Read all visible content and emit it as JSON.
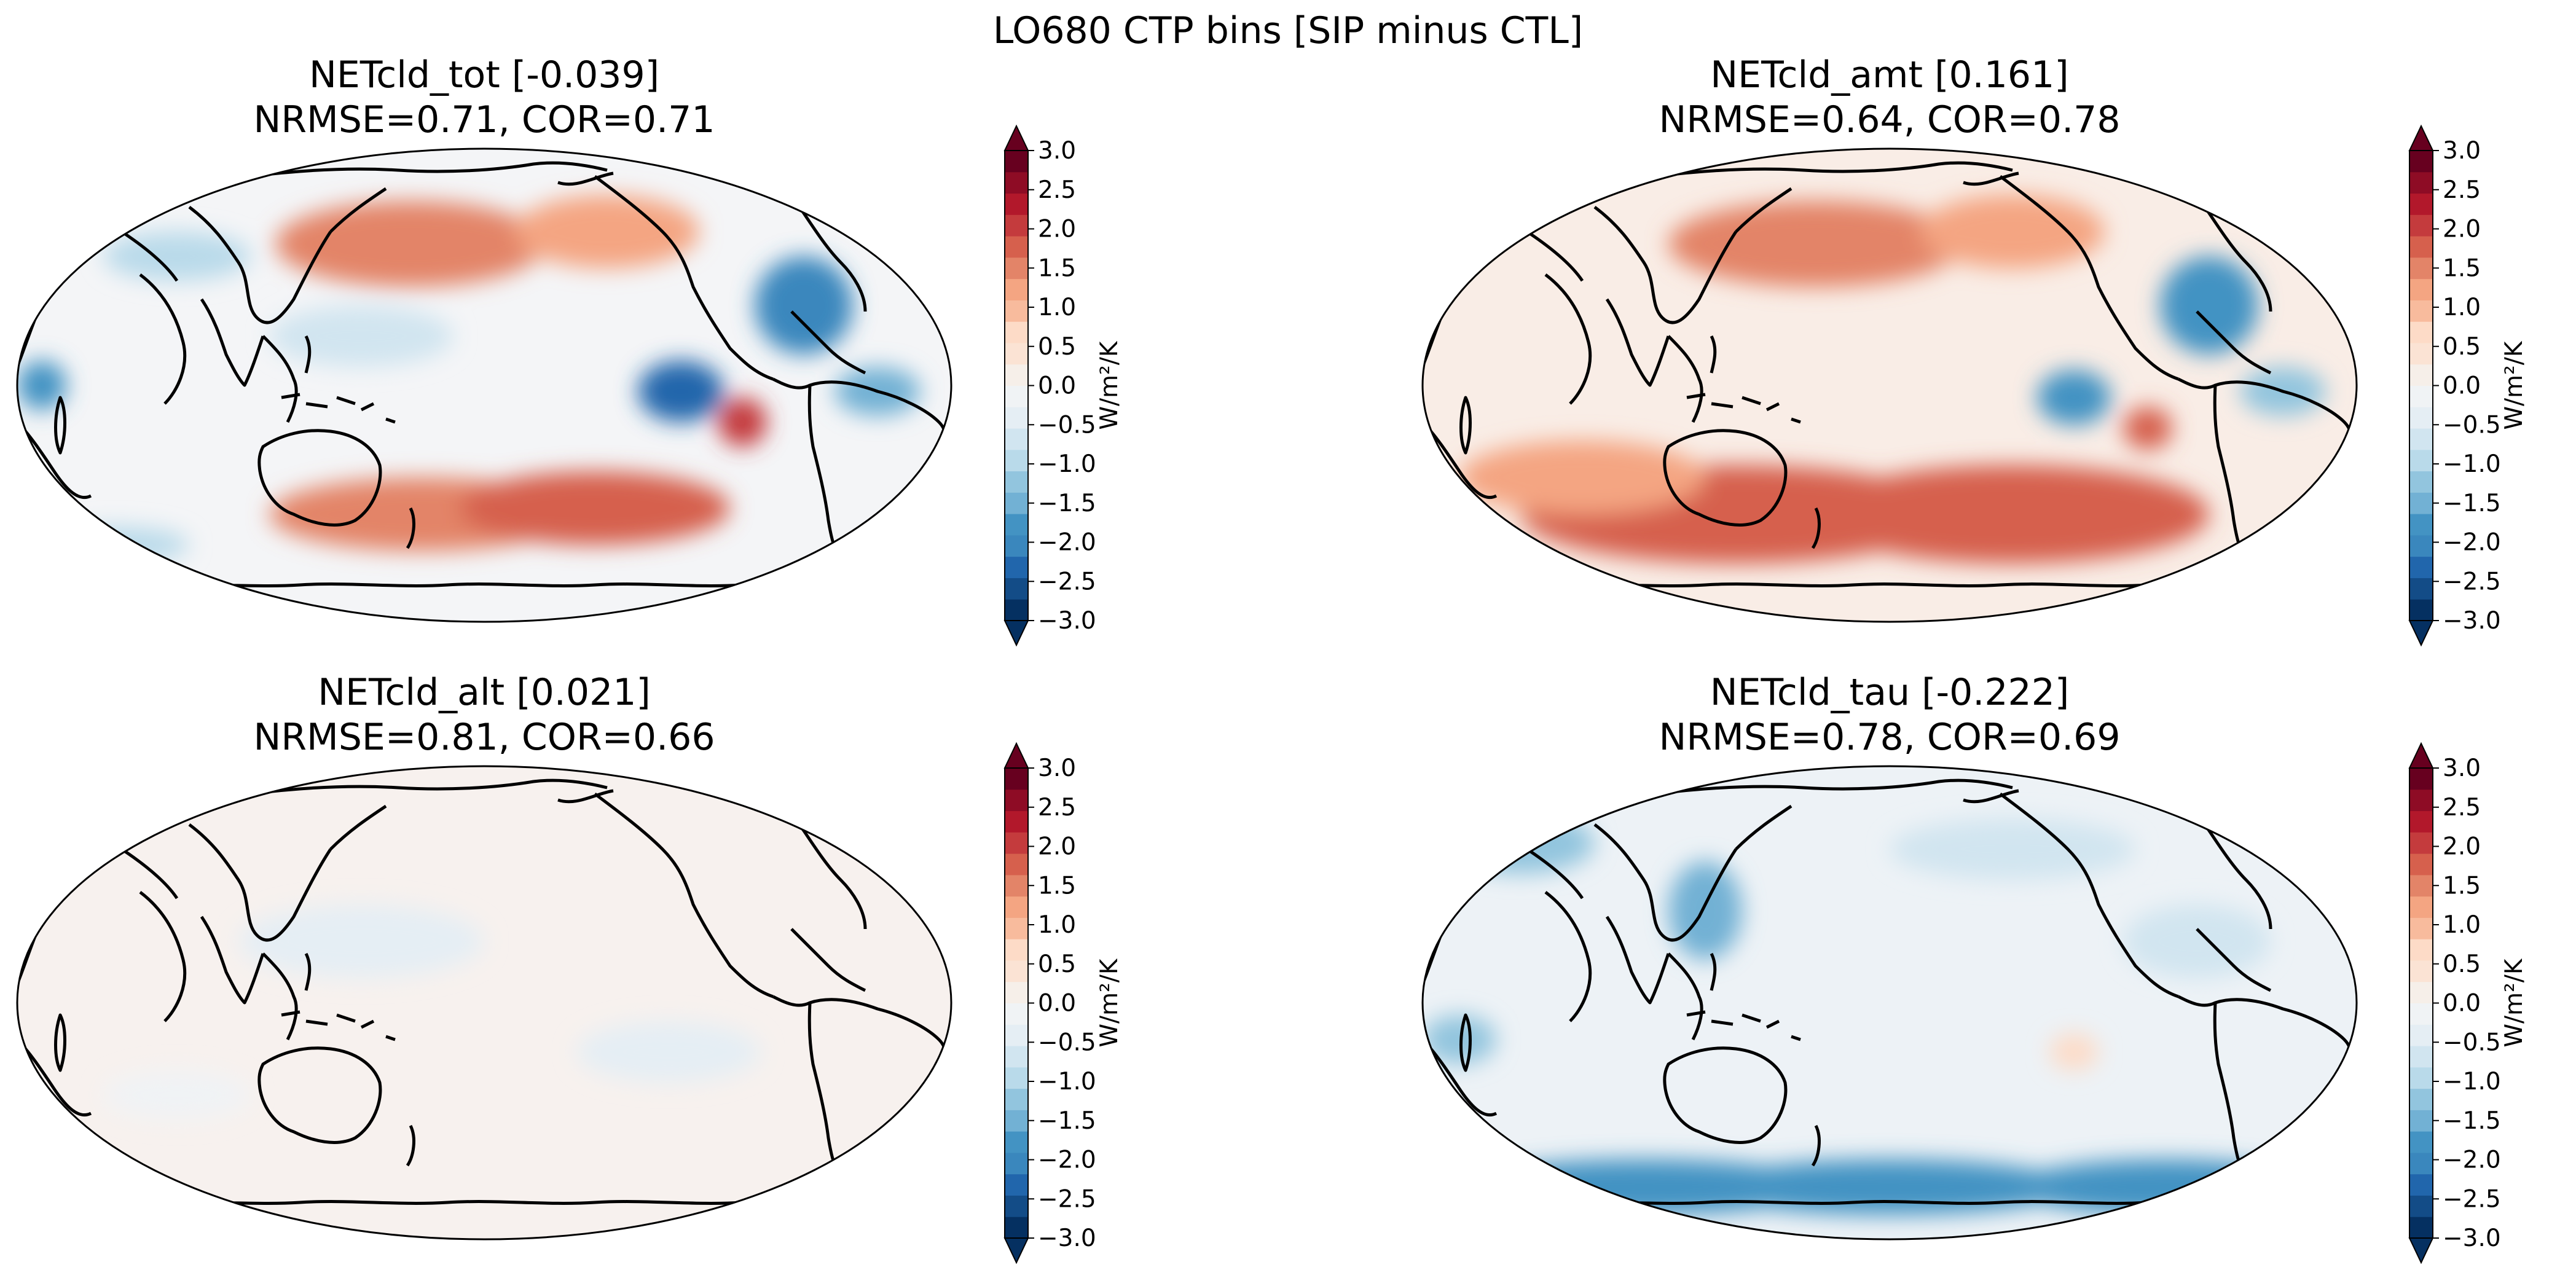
{
  "figure": {
    "suptitle": "LO680 CTP bins [SIP minus CTL]"
  },
  "colorbar": {
    "ticks": [
      "3.0",
      "2.5",
      "2.0",
      "1.5",
      "1.0",
      "0.5",
      "0.0",
      "−0.5",
      "−1.0",
      "−1.5",
      "−2.0",
      "−2.5",
      "−3.0"
    ],
    "label": "W/m²/K",
    "colors": [
      "#053061",
      "#134c87",
      "#2166ac",
      "#3a87bd",
      "#4393c3",
      "#72b1d4",
      "#92c5de",
      "#b9daea",
      "#d1e5f0",
      "#e5eef4",
      "#f0f3f5",
      "#f6efe9",
      "#fbe3d4",
      "#fddbc7",
      "#f8bb9d",
      "#f4a582",
      "#e38468",
      "#d6604d",
      "#c43b3d",
      "#b2182b",
      "#8e0c25",
      "#67001f"
    ]
  },
  "panels": [
    {
      "name": "NETcld_tot",
      "title": "NETcld_tot [-0.039]",
      "stats": "NRMSE=0.71, COR=0.71",
      "base": "#f4f5f7"
    },
    {
      "name": "NETcld_amt",
      "title": "NETcld_amt [0.161]",
      "stats": "NRMSE=0.64, COR=0.78",
      "base": "#f9ede6"
    },
    {
      "name": "NETcld_alt",
      "title": "NETcld_alt [0.021]",
      "stats": "NRMSE=0.81, COR=0.66",
      "base": "#f7f1ee"
    },
    {
      "name": "NETcld_tau",
      "title": "NETcld_tau [-0.222]",
      "stats": "NRMSE=0.78, COR=0.69",
      "base": "#edf2f6"
    }
  ]
}
